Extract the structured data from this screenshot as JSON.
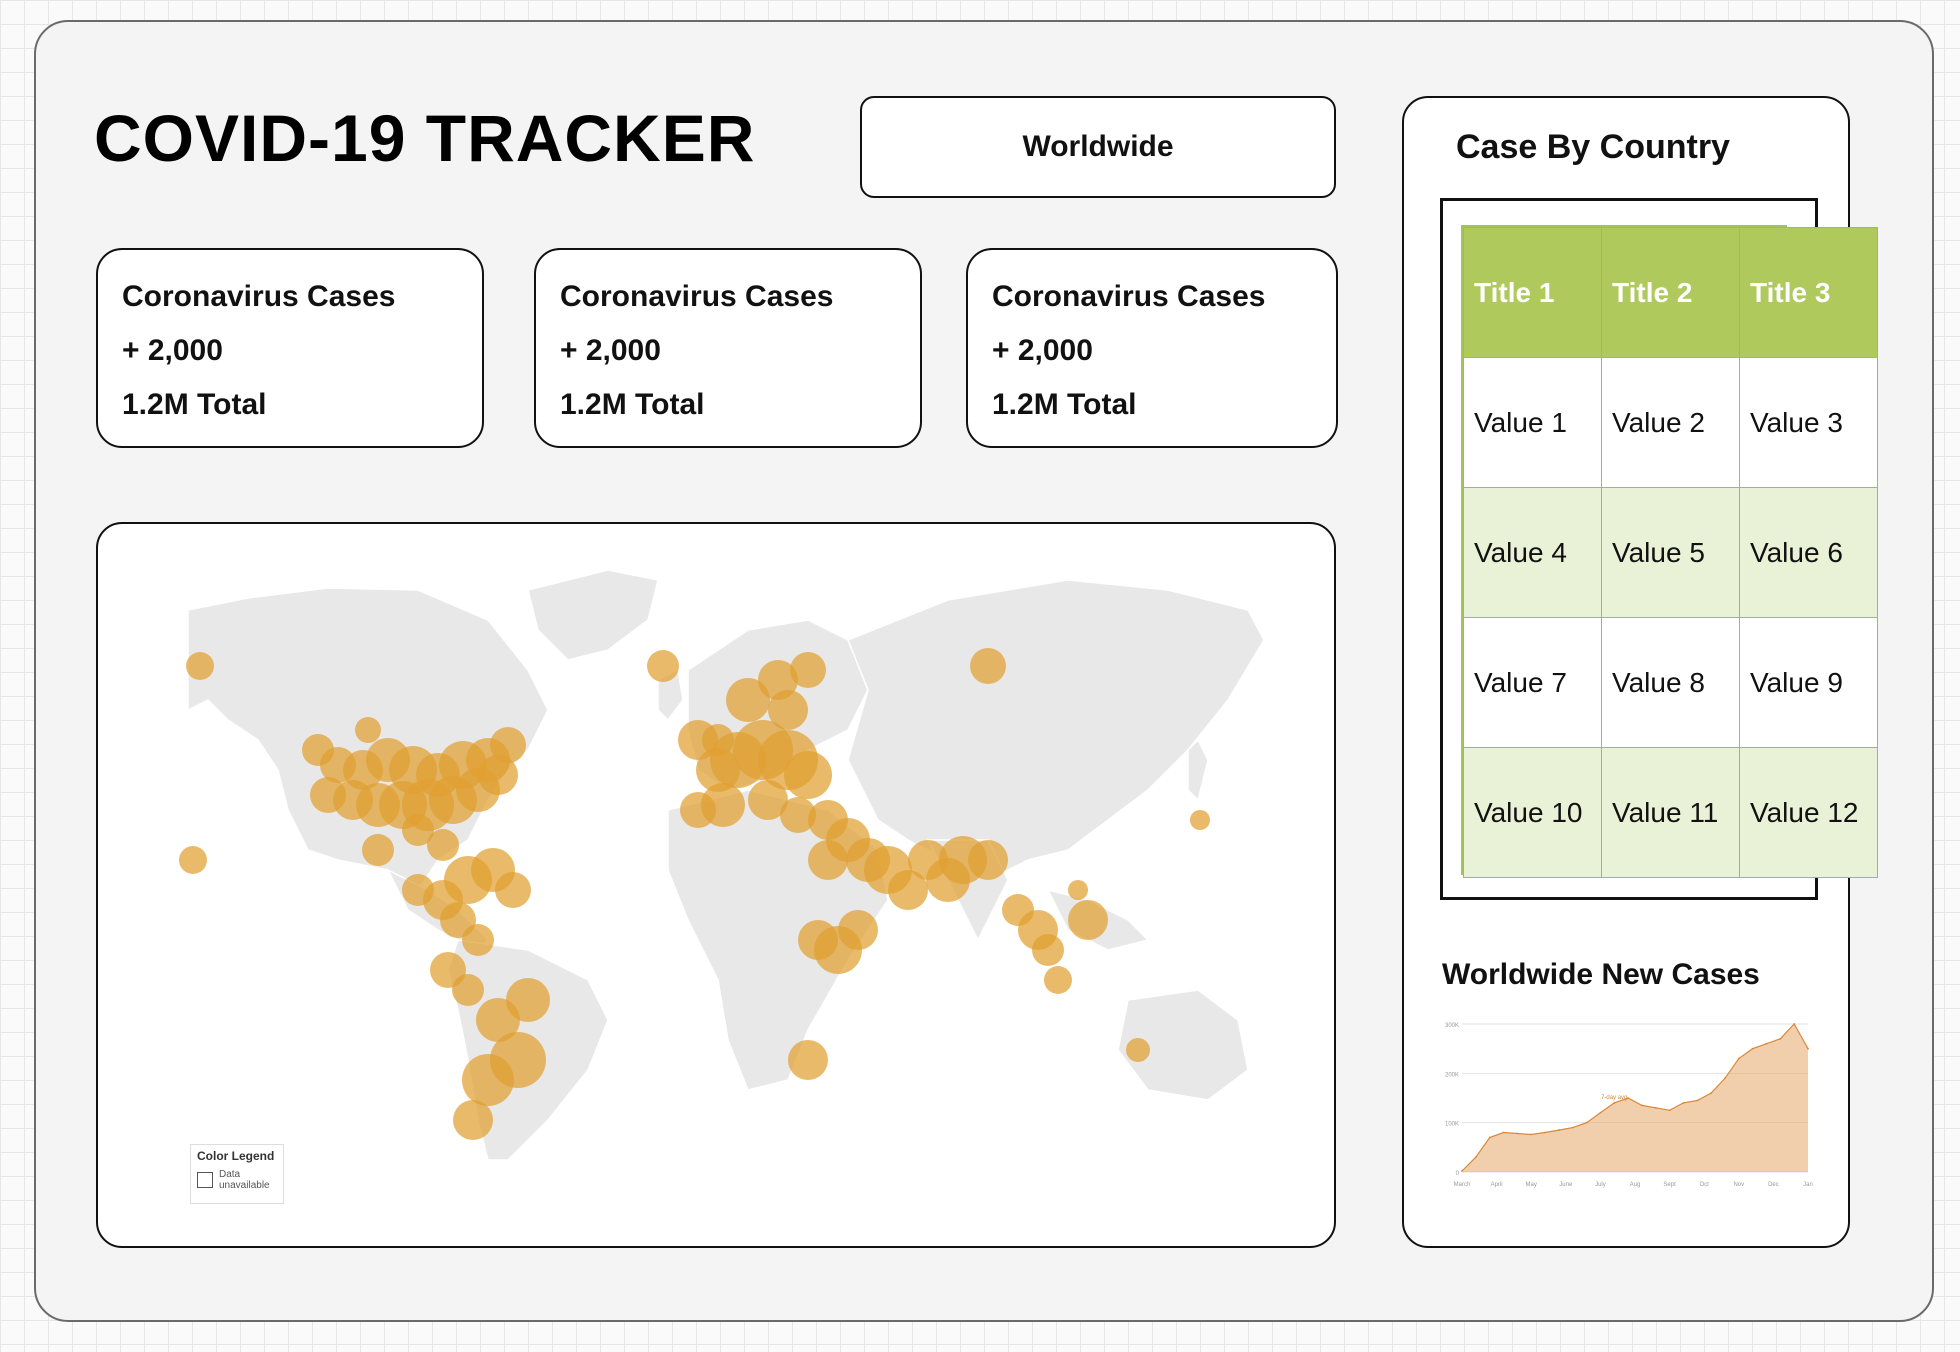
{
  "app": {
    "title": "COVID-19 TRACKER"
  },
  "selector": {
    "value": "Worldwide"
  },
  "stats": [
    {
      "label": "Coronavirus Cases",
      "delta": "+ 2,000",
      "total": "1.2M Total"
    },
    {
      "label": "Coronavirus Cases",
      "delta": "+ 2,000",
      "total": "1.2M Total"
    },
    {
      "label": "Coronavirus Cases",
      "delta": "+ 2,000",
      "total": "1.2M Total"
    }
  ],
  "map": {
    "legend_title": "Color Legend",
    "legend_item": "Data unavailable",
    "colors": {
      "land": "#e8e8e8",
      "border": "#ffffff",
      "bubble": "#e0a030"
    }
  },
  "side": {
    "title": "Case By Country"
  },
  "table": {
    "headers": [
      "Title 1",
      "Title 2",
      "Title 3"
    ],
    "rows": [
      [
        "Value 1",
        "Value 2",
        "Value 3"
      ],
      [
        "Value 4",
        "Value 5",
        "Value 6"
      ],
      [
        "Value 7",
        "Value 8",
        "Value 9"
      ],
      [
        "Value 10",
        "Value 11",
        "Value 12"
      ]
    ],
    "colors": {
      "header": "#b0c95c",
      "alt_row": "#e9f2d6"
    }
  },
  "new_cases": {
    "title": "Worldwide New Cases",
    "chart_data": {
      "type": "area",
      "title": "",
      "xlabel": "",
      "ylabel": "",
      "ylim": [
        0,
        300000
      ],
      "y_ticks": [
        "0",
        "100K",
        "200K",
        "300K"
      ],
      "x_ticks": [
        "March",
        "April",
        "May",
        "June",
        "July",
        "Aug",
        "Sept",
        "Oct",
        "Nov",
        "Dec",
        "Jan"
      ],
      "annotation": "7-day avg",
      "values": [
        2000,
        30000,
        70000,
        80000,
        78000,
        76000,
        80000,
        85000,
        90000,
        100000,
        120000,
        140000,
        150000,
        135000,
        130000,
        125000,
        140000,
        145000,
        160000,
        190000,
        230000,
        250000,
        260000,
        270000,
        300000,
        250000
      ],
      "grid": true,
      "color": "#e8a868"
    }
  }
}
